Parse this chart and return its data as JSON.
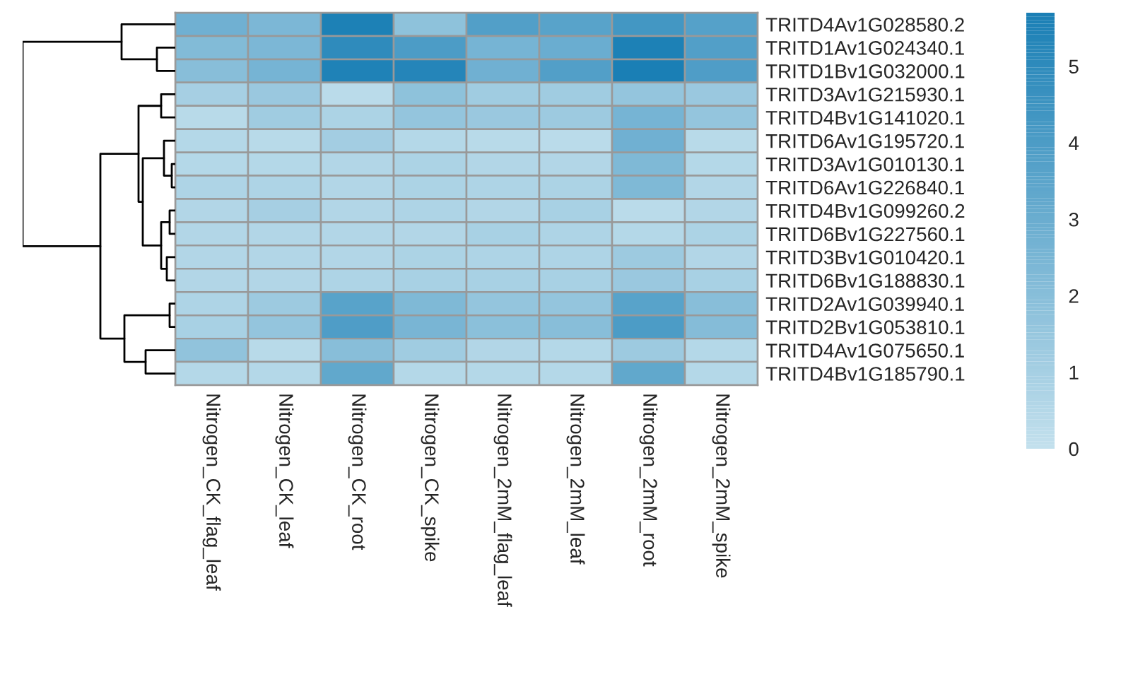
{
  "chart_data": {
    "type": "heatmap",
    "categories": [
      "Nitrogen_CK_flag_leaf",
      "Nitrogen_CK_leaf",
      "Nitrogen_CK_root",
      "Nitrogen_CK_spike",
      "Nitrogen_2mM_flag_leaf",
      "Nitrogen_2mM_leaf",
      "Nitrogen_2mM_root",
      "Nitrogen_2mM_spike"
    ],
    "y_categories": [
      "TRITD4Av1G028580.2",
      "TRITD1Av1G024340.1",
      "TRITD1Bv1G032000.1",
      "TRITD3Av1G215930.1",
      "TRITD4Bv1G141020.1",
      "TRITD6Av1G195720.1",
      "TRITD3Av1G010130.1",
      "TRITD6Av1G226840.1",
      "TRITD4Bv1G099260.2",
      "TRITD6Bv1G227560.1",
      "TRITD3Bv1G010420.1",
      "TRITD6Bv1G188830.1",
      "TRITD2Av1G039940.1",
      "TRITD2Bv1G053810.1",
      "TRITD4Av1G075650.1",
      "TRITD4Bv1G185790.1"
    ],
    "cells": [
      [
        2.8,
        2.4,
        5.6,
        1.8,
        3.8,
        3.6,
        4.3,
        3.7
      ],
      [
        2.2,
        2.4,
        5.0,
        4.0,
        2.6,
        3.0,
        5.6,
        3.8
      ],
      [
        2.0,
        2.6,
        5.5,
        5.3,
        2.8,
        3.8,
        5.7,
        3.9
      ],
      [
        1.0,
        1.4,
        0.3,
        1.8,
        1.2,
        1.2,
        1.6,
        1.4
      ],
      [
        0.4,
        1.2,
        0.8,
        1.6,
        1.4,
        1.3,
        2.6,
        1.6
      ],
      [
        0.5,
        0.4,
        1.1,
        0.5,
        0.4,
        0.3,
        2.8,
        0.4
      ],
      [
        0.5,
        0.5,
        0.6,
        0.8,
        0.6,
        0.6,
        2.3,
        0.5
      ],
      [
        0.7,
        0.7,
        0.6,
        0.8,
        0.7,
        0.8,
        2.3,
        0.6
      ],
      [
        0.6,
        1.0,
        0.6,
        0.7,
        0.6,
        0.9,
        0.3,
        0.6
      ],
      [
        0.6,
        0.6,
        0.6,
        0.6,
        0.9,
        0.7,
        0.5,
        0.8
      ],
      [
        0.6,
        0.6,
        0.6,
        0.8,
        0.7,
        0.7,
        1.3,
        0.6
      ],
      [
        0.6,
        0.6,
        0.7,
        0.9,
        0.9,
        0.9,
        1.4,
        0.9
      ],
      [
        0.7,
        1.3,
        3.6,
        2.3,
        1.6,
        1.6,
        3.6,
        2.0
      ],
      [
        0.9,
        1.6,
        3.9,
        2.5,
        1.9,
        2.0,
        4.0,
        2.1
      ],
      [
        1.7,
        0.4,
        2.0,
        1.2,
        0.6,
        0.5,
        1.3,
        0.5
      ],
      [
        0.5,
        0.5,
        3.3,
        0.5,
        0.5,
        0.5,
        3.3,
        0.5
      ]
    ],
    "clim": [
      0,
      5.7
    ],
    "cticks": [
      0,
      1,
      2,
      3,
      4,
      5
    ]
  }
}
